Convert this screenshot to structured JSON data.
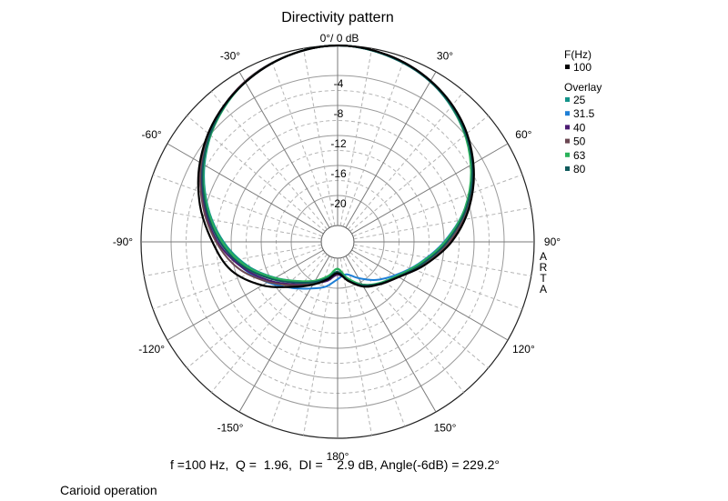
{
  "chart_data": {
    "type": "polar",
    "title": "Directivity pattern",
    "reference_label": "0°/ 0 dB",
    "radial_unit": "dB",
    "radial_range": [
      -24,
      0
    ],
    "radial_ticks": [
      -4,
      -8,
      -12,
      -16,
      -20
    ],
    "angle_ticks": [
      {
        "angle": 0,
        "label": ""
      },
      {
        "angle": 30,
        "label": "30°"
      },
      {
        "angle": 60,
        "label": "60°"
      },
      {
        "angle": 90,
        "label": "90°"
      },
      {
        "angle": 120,
        "label": "120°"
      },
      {
        "angle": 150,
        "label": "150°"
      },
      {
        "angle": 180,
        "label": "180°"
      },
      {
        "angle": -150,
        "label": "-150°"
      },
      {
        "angle": -120,
        "label": "-120°"
      },
      {
        "angle": -90,
        "label": "-90°"
      },
      {
        "angle": -60,
        "label": "-60°"
      },
      {
        "angle": -30,
        "label": "-30°"
      }
    ],
    "grid": true,
    "legend": {
      "position": "right",
      "header": "F(Hz)",
      "overlay_header": "Overlay"
    },
    "series": [
      {
        "name": "100",
        "color": "#000000",
        "group": "main",
        "points": [
          [
            0,
            0
          ],
          [
            15,
            -0.4
          ],
          [
            30,
            -1.4
          ],
          [
            45,
            -3.0
          ],
          [
            60,
            -5.3
          ],
          [
            75,
            -8.0
          ],
          [
            90,
            -11.0
          ],
          [
            105,
            -14.2
          ],
          [
            120,
            -16.8
          ],
          [
            135,
            -18.2
          ],
          [
            150,
            -19.3
          ],
          [
            165,
            -20.8
          ],
          [
            180,
            -22.0
          ],
          [
            -165,
            -21.0
          ],
          [
            -150,
            -19.6
          ],
          [
            -135,
            -17.7
          ],
          [
            -120,
            -14.6
          ],
          [
            -105,
            -11.5
          ],
          [
            -90,
            -9.5
          ],
          [
            -75,
            -7.2
          ],
          [
            -60,
            -5.0
          ],
          [
            -45,
            -3.1
          ],
          [
            -30,
            -1.6
          ],
          [
            -15,
            -0.5
          ]
        ]
      },
      {
        "name": "25",
        "color": "#14948a",
        "group": "overlay",
        "points": [
          [
            0,
            0
          ],
          [
            15,
            -0.5
          ],
          [
            30,
            -1.5
          ],
          [
            45,
            -3.3
          ],
          [
            60,
            -5.6
          ],
          [
            75,
            -8.5
          ],
          [
            90,
            -11.8
          ],
          [
            105,
            -14.8
          ],
          [
            120,
            -17.0
          ],
          [
            135,
            -18.3
          ],
          [
            150,
            -19.6
          ],
          [
            165,
            -21.0
          ],
          [
            180,
            -22.6
          ],
          [
            -165,
            -21.4
          ],
          [
            -150,
            -20.2
          ],
          [
            -135,
            -18.8
          ],
          [
            -120,
            -16.6
          ],
          [
            -105,
            -13.8
          ],
          [
            -90,
            -11.0
          ],
          [
            -75,
            -8.3
          ],
          [
            -60,
            -5.7
          ],
          [
            -45,
            -3.4
          ],
          [
            -30,
            -1.6
          ],
          [
            -15,
            -0.5
          ]
        ]
      },
      {
        "name": "31.5",
        "color": "#1e7fd6",
        "group": "overlay",
        "points": [
          [
            0,
            0
          ],
          [
            15,
            -0.5
          ],
          [
            30,
            -1.5
          ],
          [
            45,
            -3.3
          ],
          [
            60,
            -5.6
          ],
          [
            75,
            -8.6
          ],
          [
            90,
            -12.0
          ],
          [
            105,
            -15.0
          ],
          [
            120,
            -17.3
          ],
          [
            135,
            -19.0
          ],
          [
            150,
            -20.6
          ],
          [
            165,
            -21.7
          ],
          [
            180,
            -21.2
          ],
          [
            -165,
            -20.0
          ],
          [
            -150,
            -19.0
          ],
          [
            -135,
            -17.5
          ],
          [
            -120,
            -15.4
          ],
          [
            -105,
            -13.0
          ],
          [
            -90,
            -10.7
          ],
          [
            -75,
            -8.2
          ],
          [
            -60,
            -5.6
          ],
          [
            -45,
            -3.3
          ],
          [
            -30,
            -1.6
          ],
          [
            -15,
            -0.5
          ]
        ]
      },
      {
        "name": "40",
        "color": "#4b1a72",
        "group": "overlay",
        "points": [
          [
            0,
            0
          ],
          [
            15,
            -0.4
          ],
          [
            30,
            -1.4
          ],
          [
            45,
            -3.2
          ],
          [
            60,
            -5.4
          ],
          [
            75,
            -8.2
          ],
          [
            90,
            -11.2
          ],
          [
            105,
            -14.2
          ],
          [
            120,
            -16.8
          ],
          [
            135,
            -18.2
          ],
          [
            150,
            -19.6
          ],
          [
            165,
            -21.0
          ],
          [
            180,
            -21.8
          ],
          [
            -165,
            -20.8
          ],
          [
            -150,
            -19.8
          ],
          [
            -135,
            -18.2
          ],
          [
            -120,
            -15.8
          ],
          [
            -105,
            -13.0
          ],
          [
            -90,
            -10.2
          ],
          [
            -75,
            -7.8
          ],
          [
            -60,
            -5.3
          ],
          [
            -45,
            -3.2
          ],
          [
            -30,
            -1.5
          ],
          [
            -15,
            -0.5
          ]
        ]
      },
      {
        "name": "50",
        "color": "#6b4752",
        "group": "overlay",
        "points": [
          [
            0,
            0
          ],
          [
            15,
            -0.4
          ],
          [
            30,
            -1.4
          ],
          [
            45,
            -3.1
          ],
          [
            60,
            -5.4
          ],
          [
            75,
            -8.2
          ],
          [
            90,
            -11.3
          ],
          [
            105,
            -14.4
          ],
          [
            120,
            -16.9
          ],
          [
            135,
            -18.3
          ],
          [
            150,
            -19.6
          ],
          [
            165,
            -21.0
          ],
          [
            180,
            -22.0
          ],
          [
            -165,
            -21.0
          ],
          [
            -150,
            -19.8
          ],
          [
            -135,
            -18.0
          ],
          [
            -120,
            -15.5
          ],
          [
            -105,
            -12.5
          ],
          [
            -90,
            -10.0
          ],
          [
            -75,
            -7.6
          ],
          [
            -60,
            -5.2
          ],
          [
            -45,
            -3.2
          ],
          [
            -30,
            -1.5
          ],
          [
            -15,
            -0.5
          ]
        ]
      },
      {
        "name": "63",
        "color": "#2bb25a",
        "group": "overlay",
        "points": [
          [
            0,
            0
          ],
          [
            15,
            -0.5
          ],
          [
            30,
            -1.5
          ],
          [
            45,
            -3.3
          ],
          [
            60,
            -5.7
          ],
          [
            75,
            -8.6
          ],
          [
            90,
            -11.9
          ],
          [
            105,
            -14.9
          ],
          [
            120,
            -17.1
          ],
          [
            135,
            -18.4
          ],
          [
            150,
            -19.6
          ],
          [
            165,
            -21.2
          ],
          [
            180,
            -22.6
          ],
          [
            -165,
            -21.5
          ],
          [
            -150,
            -20.2
          ],
          [
            -135,
            -18.8
          ],
          [
            -120,
            -16.5
          ],
          [
            -105,
            -13.6
          ],
          [
            -90,
            -10.8
          ],
          [
            -75,
            -8.2
          ],
          [
            -60,
            -5.6
          ],
          [
            -45,
            -3.4
          ],
          [
            -30,
            -1.6
          ],
          [
            -15,
            -0.5
          ]
        ]
      },
      {
        "name": "80",
        "color": "#0f5a5c",
        "group": "overlay",
        "points": [
          [
            0,
            0
          ],
          [
            15,
            -0.5
          ],
          [
            30,
            -1.5
          ],
          [
            45,
            -3.2
          ],
          [
            60,
            -5.5
          ],
          [
            75,
            -8.4
          ],
          [
            90,
            -11.6
          ],
          [
            105,
            -14.6
          ],
          [
            120,
            -16.9
          ],
          [
            135,
            -18.3
          ],
          [
            150,
            -19.5
          ],
          [
            165,
            -20.9
          ],
          [
            180,
            -22.2
          ],
          [
            -165,
            -21.2
          ],
          [
            -150,
            -20.0
          ],
          [
            -135,
            -18.5
          ],
          [
            -120,
            -16.2
          ],
          [
            -105,
            -13.3
          ],
          [
            -90,
            -10.5
          ],
          [
            -75,
            -8.0
          ],
          [
            -60,
            -5.5
          ],
          [
            -45,
            -3.3
          ],
          [
            -30,
            -1.6
          ],
          [
            -15,
            -0.5
          ]
        ]
      }
    ],
    "stats_line": "f =100 Hz,  Q =  1.96,  DI =    2.9 dB, Angle(-6dB) = 229.2°",
    "watermark": "ARTA",
    "caption": "Carioid operation"
  }
}
